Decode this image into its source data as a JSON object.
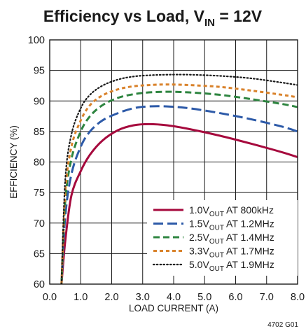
{
  "chart_data": {
    "type": "line",
    "title": {
      "prefix": "Efficiency vs Load, V",
      "sub": "IN",
      "suffix": " = 12V"
    },
    "xlabel": "LOAD CURRENT (A)",
    "ylabel": "EFFICIENCY (%)",
    "xlim": [
      0,
      8
    ],
    "ylim": [
      60,
      100
    ],
    "x_ticks": [
      "0.0",
      "1.0",
      "2.0",
      "3.0",
      "4.0",
      "5.0",
      "6.0",
      "7.0",
      "8.0"
    ],
    "y_ticks": [
      "60",
      "65",
      "70",
      "75",
      "80",
      "85",
      "90",
      "95",
      "100"
    ],
    "grid": true,
    "legend_position": "bottom-right",
    "figure_code": "4702 G01",
    "series": [
      {
        "label": {
          "prefix": "1.0V",
          "sub": "OUT",
          "suffix": " AT 800kHz"
        },
        "color": "#a6093d",
        "dash": "solid",
        "x": [
          0.38,
          0.5,
          0.7,
          1.0,
          1.3,
          1.7,
          2.2,
          2.7,
          3.2,
          3.8,
          4.5,
          5.5,
          6.5,
          7.5,
          8.0
        ],
        "y": [
          60.0,
          67.0,
          74.5,
          78.5,
          81.2,
          83.5,
          85.2,
          86.0,
          86.2,
          86.0,
          85.4,
          84.3,
          83.0,
          81.6,
          80.8
        ]
      },
      {
        "label": {
          "prefix": "1.5V",
          "sub": "OUT",
          "suffix": " AT 1.2MHz"
        },
        "color": "#2d5aa8",
        "dash": "long-dash",
        "x": [
          0.38,
          0.5,
          0.7,
          1.0,
          1.3,
          1.7,
          2.2,
          2.7,
          3.2,
          3.8,
          4.5,
          5.5,
          6.5,
          7.5,
          8.0
        ],
        "y": [
          60.0,
          71.0,
          78.0,
          82.5,
          85.0,
          86.8,
          88.0,
          88.8,
          89.1,
          89.1,
          88.8,
          88.0,
          87.0,
          85.8,
          85.0
        ]
      },
      {
        "label": {
          "prefix": "2.5V",
          "sub": "OUT",
          "suffix": " AT 1.4MHz"
        },
        "color": "#2e8540",
        "dash": "dash",
        "x": [
          0.38,
          0.5,
          0.7,
          1.0,
          1.3,
          1.7,
          2.2,
          2.7,
          3.2,
          3.8,
          4.5,
          5.5,
          6.5,
          7.5,
          8.0
        ],
        "y": [
          60.0,
          73.5,
          80.5,
          85.0,
          87.5,
          89.3,
          90.5,
          91.1,
          91.4,
          91.5,
          91.4,
          91.0,
          90.3,
          89.5,
          89.0
        ]
      },
      {
        "label": {
          "prefix": "3.3V",
          "sub": "OUT",
          "suffix": " AT 1.7MHz"
        },
        "color": "#d9822b",
        "dash": "short-dash",
        "x": [
          0.38,
          0.5,
          0.7,
          1.0,
          1.3,
          1.7,
          2.2,
          2.7,
          3.2,
          3.8,
          4.5,
          5.5,
          6.5,
          7.5,
          8.0
        ],
        "y": [
          60.0,
          75.0,
          82.5,
          86.8,
          89.3,
          90.9,
          91.9,
          92.4,
          92.6,
          92.7,
          92.6,
          92.3,
          91.7,
          91.0,
          90.6
        ]
      },
      {
        "label": {
          "prefix": "5.0V",
          "sub": "OUT",
          "suffix": " AT 1.9MHz"
        },
        "color": "#1a1a1a",
        "dash": "dot",
        "x": [
          0.38,
          0.5,
          0.7,
          1.0,
          1.3,
          1.7,
          2.2,
          2.7,
          3.2,
          3.8,
          4.5,
          5.5,
          6.5,
          7.5,
          8.0
        ],
        "y": [
          60.0,
          77.0,
          84.5,
          88.8,
          91.0,
          92.5,
          93.5,
          94.0,
          94.2,
          94.3,
          94.3,
          94.1,
          93.7,
          93.0,
          92.6
        ]
      }
    ]
  }
}
